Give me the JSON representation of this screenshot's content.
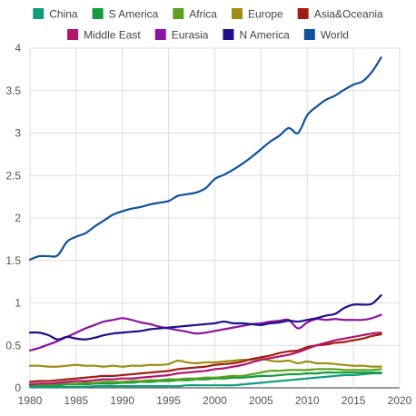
{
  "chart_data": {
    "type": "line",
    "title": "",
    "xlabel": "",
    "ylabel": "",
    "xlim": [
      1980,
      2020
    ],
    "ylim": [
      0,
      4
    ],
    "grid": true,
    "legend_position": "top",
    "x_ticks": [
      "1980",
      "1985",
      "1990",
      "1995",
      "2000",
      "2005",
      "2010",
      "2015",
      "2020"
    ],
    "y_ticks": [
      "0",
      "0.5",
      "1",
      "1.5",
      "2",
      "2.5",
      "3",
      "3.5",
      "4"
    ],
    "x": [
      1980,
      1981,
      1982,
      1983,
      1984,
      1985,
      1986,
      1987,
      1988,
      1989,
      1990,
      1991,
      1992,
      1993,
      1994,
      1995,
      1996,
      1997,
      1998,
      1999,
      2000,
      2001,
      2002,
      2003,
      2004,
      2005,
      2006,
      2007,
      2008,
      2009,
      2010,
      2011,
      2012,
      2013,
      2014,
      2015,
      2016,
      2017,
      2018
    ],
    "series": [
      {
        "name": "China",
        "color": "#0f9d7d",
        "values": [
          0.01,
          0.01,
          0.01,
          0.01,
          0.01,
          0.01,
          0.01,
          0.02,
          0.02,
          0.02,
          0.02,
          0.02,
          0.02,
          0.02,
          0.02,
          0.02,
          0.02,
          0.03,
          0.03,
          0.03,
          0.03,
          0.03,
          0.03,
          0.04,
          0.05,
          0.06,
          0.07,
          0.08,
          0.09,
          0.1,
          0.11,
          0.12,
          0.13,
          0.14,
          0.15,
          0.15,
          0.16,
          0.17,
          0.17
        ]
      },
      {
        "name": "S America",
        "color": "#139c3c",
        "values": [
          0.03,
          0.03,
          0.03,
          0.03,
          0.04,
          0.04,
          0.04,
          0.05,
          0.05,
          0.05,
          0.06,
          0.06,
          0.07,
          0.07,
          0.08,
          0.08,
          0.09,
          0.09,
          0.1,
          0.1,
          0.11,
          0.11,
          0.12,
          0.12,
          0.13,
          0.14,
          0.14,
          0.15,
          0.16,
          0.16,
          0.17,
          0.17,
          0.18,
          0.18,
          0.18,
          0.18,
          0.18,
          0.18,
          0.18
        ]
      },
      {
        "name": "Africa",
        "color": "#5aa01e",
        "values": [
          0.04,
          0.04,
          0.04,
          0.05,
          0.05,
          0.05,
          0.06,
          0.06,
          0.07,
          0.07,
          0.07,
          0.08,
          0.08,
          0.09,
          0.09,
          0.1,
          0.1,
          0.11,
          0.11,
          0.12,
          0.12,
          0.13,
          0.14,
          0.14,
          0.16,
          0.18,
          0.2,
          0.2,
          0.21,
          0.21,
          0.21,
          0.22,
          0.22,
          0.22,
          0.21,
          0.21,
          0.21,
          0.21,
          0.22
        ]
      },
      {
        "name": "Europe",
        "color": "#a08c14",
        "values": [
          0.26,
          0.26,
          0.25,
          0.25,
          0.26,
          0.27,
          0.26,
          0.26,
          0.25,
          0.26,
          0.25,
          0.26,
          0.26,
          0.27,
          0.27,
          0.28,
          0.32,
          0.3,
          0.29,
          0.3,
          0.3,
          0.31,
          0.32,
          0.33,
          0.33,
          0.34,
          0.32,
          0.31,
          0.32,
          0.29,
          0.31,
          0.29,
          0.29,
          0.28,
          0.27,
          0.26,
          0.26,
          0.25,
          0.25
        ]
      },
      {
        "name": "Asia&Oceania",
        "color": "#a01e0f",
        "values": [
          0.07,
          0.08,
          0.08,
          0.09,
          0.1,
          0.11,
          0.12,
          0.13,
          0.14,
          0.14,
          0.15,
          0.16,
          0.17,
          0.18,
          0.19,
          0.2,
          0.22,
          0.23,
          0.24,
          0.25,
          0.27,
          0.28,
          0.29,
          0.31,
          0.34,
          0.36,
          0.38,
          0.41,
          0.43,
          0.44,
          0.48,
          0.5,
          0.51,
          0.53,
          0.54,
          0.56,
          0.58,
          0.61,
          0.63
        ]
      },
      {
        "name": "Middle East",
        "color": "#b4146e",
        "values": [
          0.04,
          0.05,
          0.05,
          0.06,
          0.07,
          0.08,
          0.08,
          0.09,
          0.1,
          0.1,
          0.11,
          0.11,
          0.12,
          0.13,
          0.14,
          0.15,
          0.17,
          0.18,
          0.19,
          0.2,
          0.22,
          0.23,
          0.25,
          0.27,
          0.3,
          0.33,
          0.35,
          0.37,
          0.39,
          0.42,
          0.46,
          0.5,
          0.53,
          0.56,
          0.58,
          0.6,
          0.62,
          0.64,
          0.65
        ]
      },
      {
        "name": "Eurasia",
        "color": "#8c14a0",
        "values": [
          0.44,
          0.47,
          0.51,
          0.55,
          0.6,
          0.65,
          0.7,
          0.74,
          0.78,
          0.8,
          0.82,
          0.8,
          0.77,
          0.75,
          0.72,
          0.7,
          0.68,
          0.66,
          0.64,
          0.65,
          0.67,
          0.69,
          0.71,
          0.73,
          0.75,
          0.76,
          0.78,
          0.79,
          0.8,
          0.7,
          0.77,
          0.81,
          0.8,
          0.81,
          0.8,
          0.8,
          0.8,
          0.82,
          0.86
        ]
      },
      {
        "name": "N America",
        "color": "#1e0f8c",
        "values": [
          0.65,
          0.65,
          0.62,
          0.57,
          0.6,
          0.58,
          0.57,
          0.59,
          0.62,
          0.64,
          0.65,
          0.66,
          0.67,
          0.69,
          0.7,
          0.71,
          0.72,
          0.73,
          0.74,
          0.75,
          0.76,
          0.78,
          0.76,
          0.76,
          0.75,
          0.74,
          0.76,
          0.77,
          0.79,
          0.78,
          0.8,
          0.82,
          0.85,
          0.87,
          0.94,
          0.98,
          0.98,
          0.99,
          1.09
        ]
      },
      {
        "name": "World",
        "color": "#0f50a0",
        "values": [
          1.51,
          1.55,
          1.55,
          1.56,
          1.72,
          1.78,
          1.82,
          1.9,
          1.97,
          2.04,
          2.08,
          2.11,
          2.13,
          2.16,
          2.18,
          2.2,
          2.26,
          2.28,
          2.3,
          2.35,
          2.46,
          2.51,
          2.57,
          2.64,
          2.72,
          2.81,
          2.9,
          2.97,
          3.06,
          3.0,
          3.21,
          3.31,
          3.39,
          3.44,
          3.51,
          3.57,
          3.61,
          3.72,
          3.89
        ]
      }
    ]
  }
}
